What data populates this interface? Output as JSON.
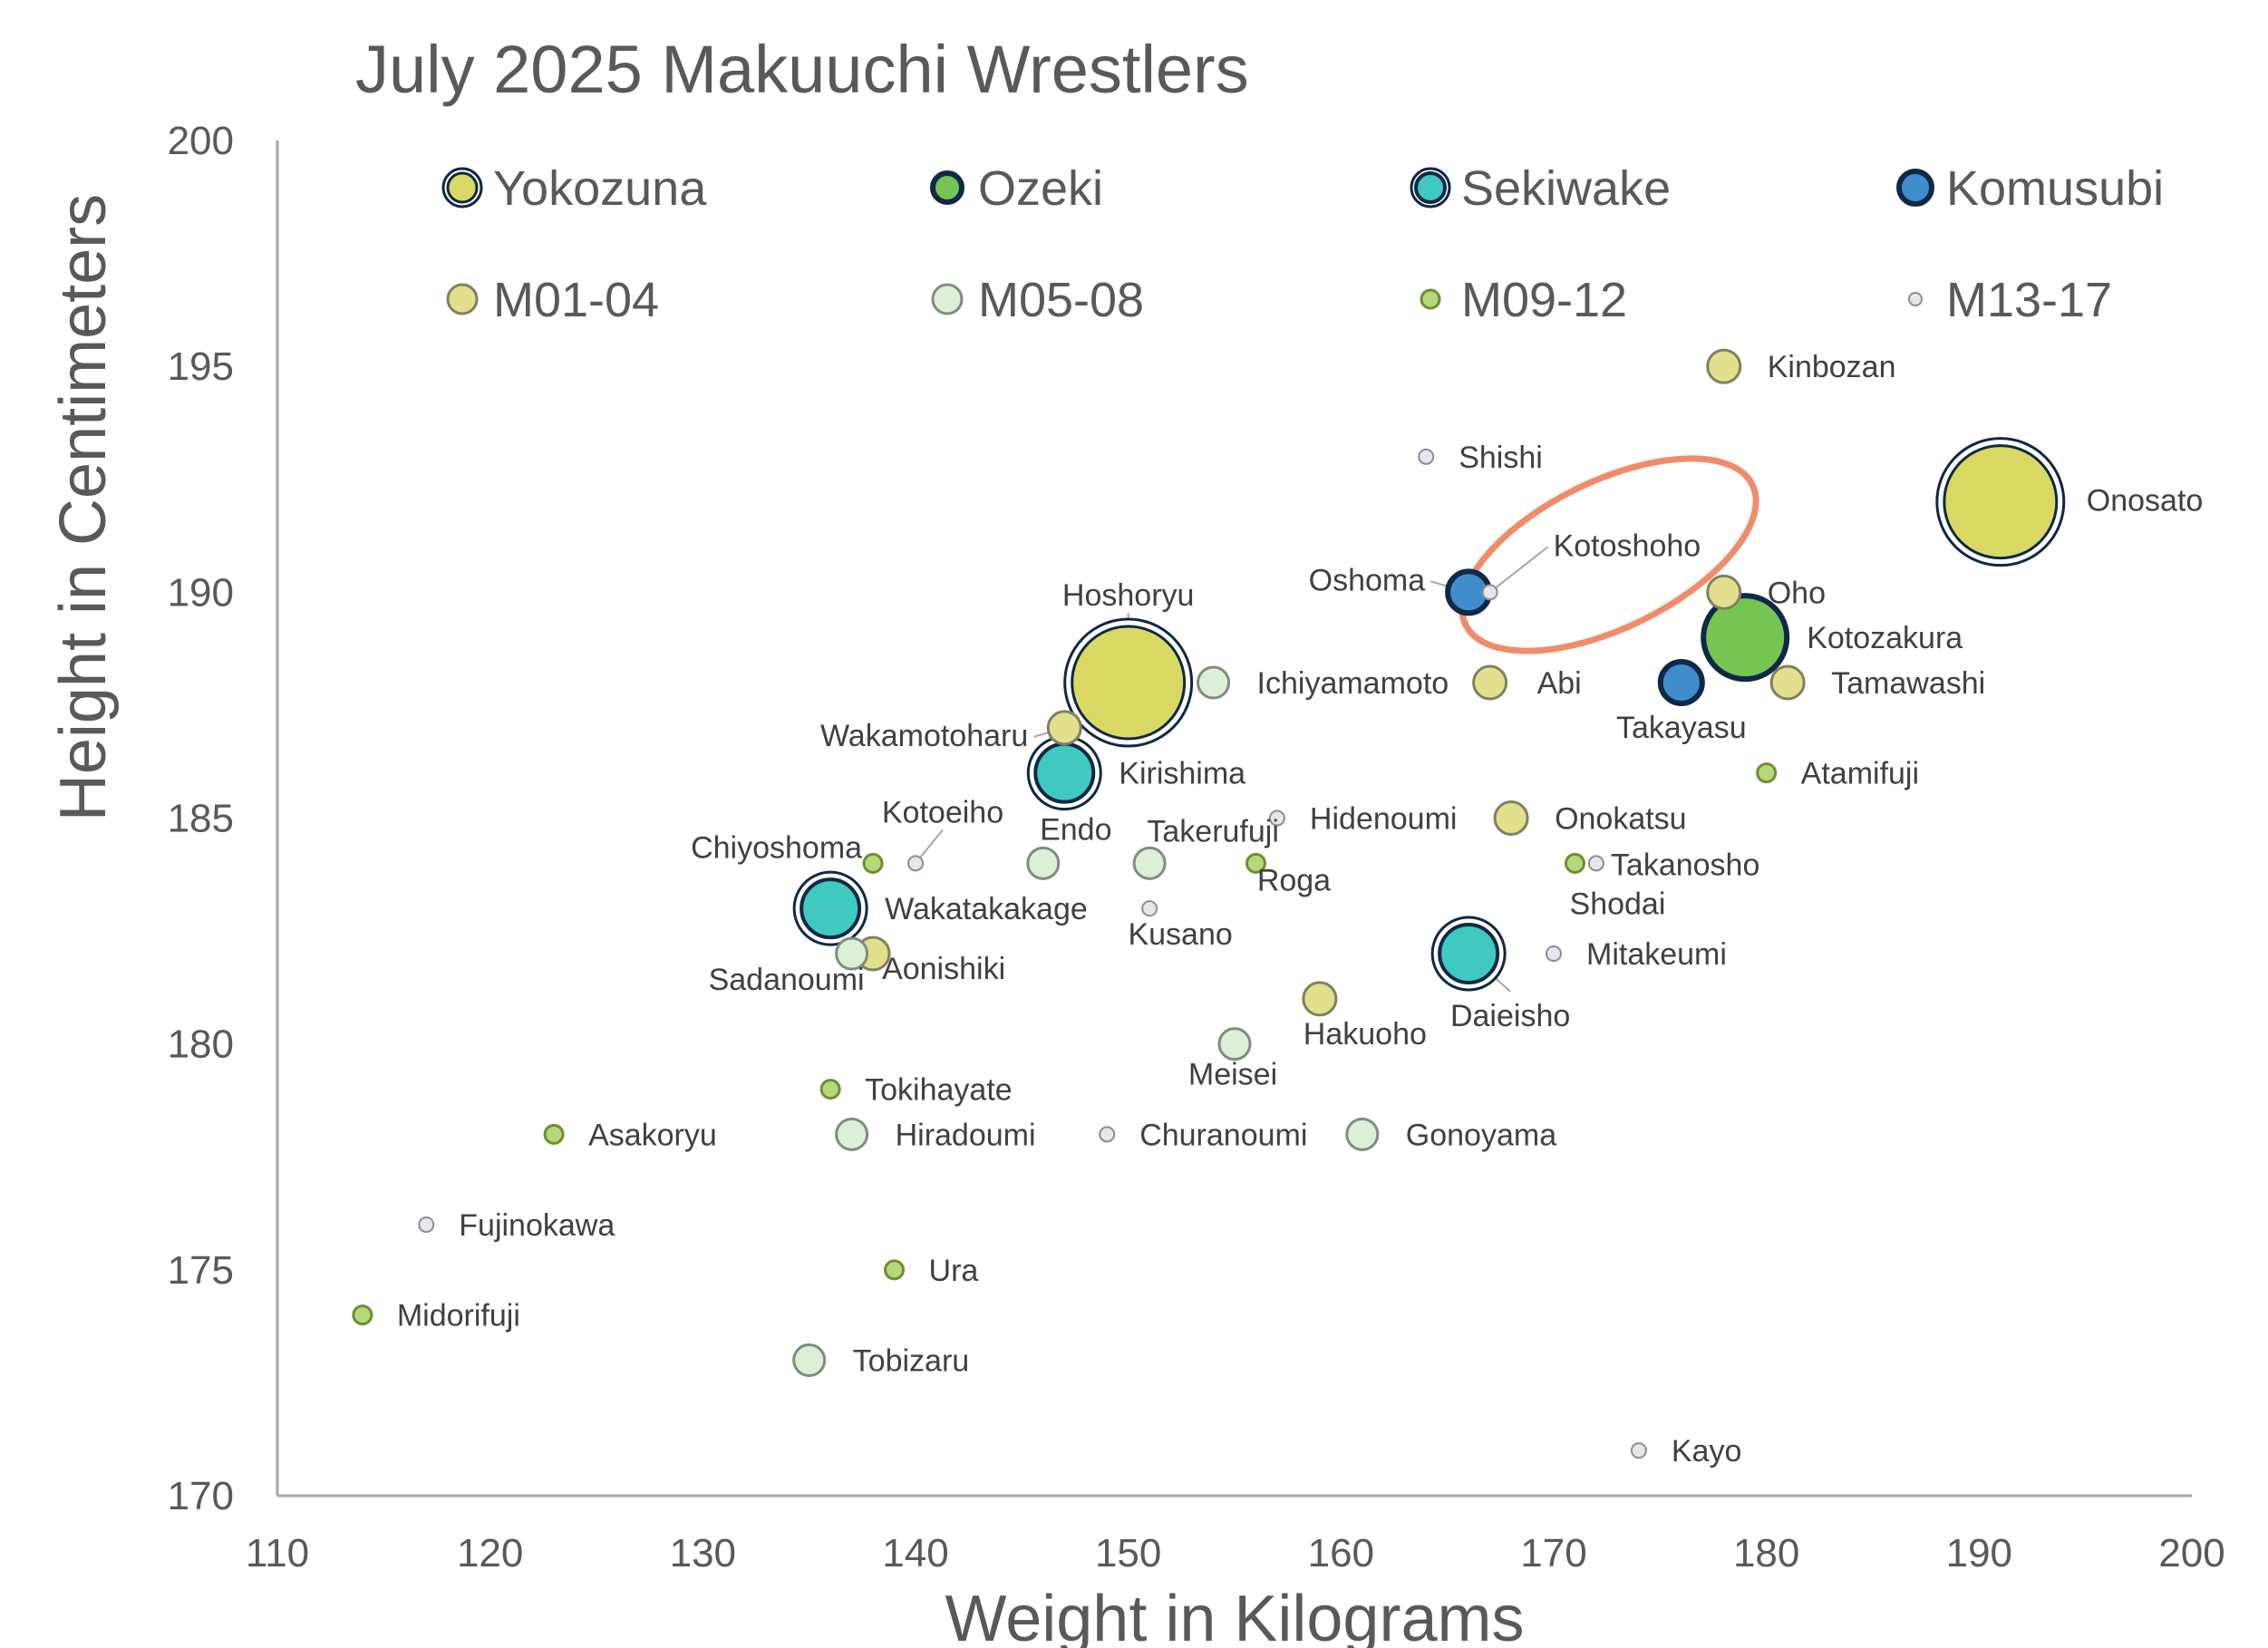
{
  "chart_data": {
    "type": "scatter",
    "title": "July 2025 Makuuchi Wrestlers",
    "xlabel": "Weight in Kilograms",
    "ylabel": "Height in Centimeters",
    "xlim": [
      110,
      200
    ],
    "ylim": [
      170,
      200
    ],
    "xticks": [
      "110",
      "120",
      "130",
      "140",
      "150",
      "160",
      "170",
      "180",
      "190",
      "200"
    ],
    "yticks": [
      "170",
      "175",
      "180",
      "185",
      "190",
      "195",
      "200"
    ],
    "grid": false,
    "legend_position": "top",
    "annotation": "ellipse highlighting Kotoshoho",
    "series": [
      {
        "name": "Yokozuna",
        "color": "#D9D964",
        "edge": "#0F2846",
        "ring": true,
        "points": [
          {
            "label": "Onosato",
            "x": 191,
            "y": 192
          },
          {
            "label": "Hoshoryu",
            "x": 150,
            "y": 188
          }
        ]
      },
      {
        "name": "Ozeki",
        "color": "#76C452",
        "edge": "#0F2846",
        "ring": false,
        "points": [
          {
            "label": "Kotozakura",
            "x": 179,
            "y": 189
          }
        ]
      },
      {
        "name": "Sekiwake",
        "color": "#40C9C0",
        "edge": "#0F2846",
        "ring": true,
        "points": [
          {
            "label": "Kirishima",
            "x": 147,
            "y": 186
          },
          {
            "label": "Wakatakakage",
            "x": 136,
            "y": 183
          },
          {
            "label": "Daieisho",
            "x": 166,
            "y": 182
          }
        ]
      },
      {
        "name": "Komusubi",
        "color": "#3F8ECB",
        "edge": "#0F2846",
        "ring": false,
        "points": [
          {
            "label": "Oshoma",
            "x": 166,
            "y": 190
          },
          {
            "label": "Takayasu",
            "x": 176,
            "y": 188
          }
        ]
      },
      {
        "name": "M01-04",
        "color": "#E2E08C",
        "edge": "#808060",
        "ring": false,
        "points": [
          {
            "label": "Kinbozan",
            "x": 178,
            "y": 195
          },
          {
            "label": "Oho",
            "x": 178,
            "y": 190
          },
          {
            "label": "Abi",
            "x": 167,
            "y": 188
          },
          {
            "label": "Tamawashi",
            "x": 181,
            "y": 188
          },
          {
            "label": "Wakamotoharu",
            "x": 147,
            "y": 187
          },
          {
            "label": "Onokatsu",
            "x": 168,
            "y": 185
          },
          {
            "label": "Aonishiki",
            "x": 138,
            "y": 182
          },
          {
            "label": "Hakuoho",
            "x": 159,
            "y": 181
          }
        ]
      },
      {
        "name": "M05-08",
        "color": "#DDEFD6",
        "edge": "#7F8C7F",
        "ring": false,
        "points": [
          {
            "label": "Ichiyamamoto",
            "x": 154,
            "y": 188
          },
          {
            "label": "Endo",
            "x": 146,
            "y": 184
          },
          {
            "label": "Takerufuji",
            "x": 151,
            "y": 184
          },
          {
            "label": "Sadanoumi",
            "x": 137,
            "y": 182
          },
          {
            "label": "Meisei",
            "x": 155,
            "y": 180
          },
          {
            "label": "Hiradoumi",
            "x": 137,
            "y": 178
          },
          {
            "label": "Gonoyama",
            "x": 161,
            "y": 178
          },
          {
            "label": "Tobizaru",
            "x": 135,
            "y": 173
          }
        ]
      },
      {
        "name": "M09-12",
        "color": "#B5D87A",
        "edge": "#6E8F2E",
        "ring": false,
        "points": [
          {
            "label": "Atamifuji",
            "x": 180,
            "y": 186
          },
          {
            "label": "Chiyoshoma",
            "x": 138,
            "y": 184
          },
          {
            "label": "Roga",
            "x": 156,
            "y": 184
          },
          {
            "label": "Shodai",
            "x": 171,
            "y": 184
          },
          {
            "label": "Tokihayate",
            "x": 136,
            "y": 179
          },
          {
            "label": "Asakoryu",
            "x": 123,
            "y": 178
          },
          {
            "label": "Ura",
            "x": 139,
            "y": 175
          },
          {
            "label": "Midorifuji",
            "x": 114,
            "y": 174
          }
        ]
      },
      {
        "name": "M13-17",
        "color": "#E6E6EC",
        "edge": "#8C8C96",
        "ring": false,
        "points": [
          {
            "label": "Shishi",
            "x": 164,
            "y": 193
          },
          {
            "label": "Kotoshoho",
            "x": 167,
            "y": 190
          },
          {
            "label": "Hidenoumi",
            "x": 157,
            "y": 185
          },
          {
            "label": "Kotoeiho",
            "x": 140,
            "y": 184
          },
          {
            "label": "Takanosho",
            "x": 172,
            "y": 184
          },
          {
            "label": "Kusano",
            "x": 151,
            "y": 183
          },
          {
            "label": "Mitakeumi",
            "x": 170,
            "y": 182
          },
          {
            "label": "Churanoumi",
            "x": 149,
            "y": 178
          },
          {
            "label": "Fujinokawa",
            "x": 117,
            "y": 176
          },
          {
            "label": "Kayo",
            "x": 174,
            "y": 171
          }
        ]
      }
    ]
  }
}
